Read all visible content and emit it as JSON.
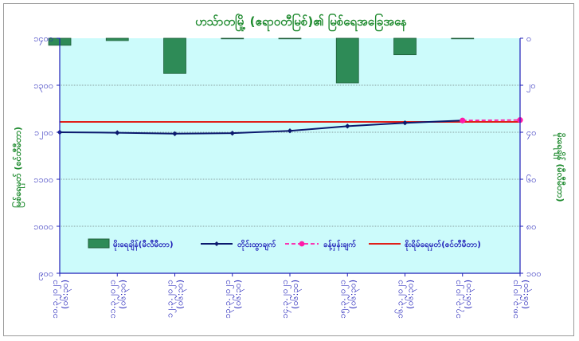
{
  "chart_data": {
    "type": "bar+line",
    "title": "ဟသ်ာတမြို့ (ဧရာဝတီမြစ်)၏ မြစ်ရေအခြေအနေ",
    "ylabel_left": "မြစ်ရေမှတ် (စင်တီမီတာ)",
    "ylabel_right": "မိုးရေချိန် (မီလီမီတာ)",
    "y_left": {
      "min": 900,
      "max": 1400,
      "step": 100,
      "tick_labels": [
        "၉၀၀",
        "၁၀၀၀",
        "၁၁၀၀",
        "၁၂၀၀",
        "၁၃၀၀",
        "၁၄၀၀"
      ]
    },
    "y_right": {
      "min": 0,
      "max": 100,
      "step": 20,
      "inverted": true,
      "tick_labels": [
        "၀",
        "၂၀",
        "၄၀",
        "၆၀",
        "၈၀",
        "၁၀၀"
      ]
    },
    "categories": [
      [
        "၁၀.၃.၂၀၂၁",
        "(၀၆:၃၀)"
      ],
      [
        "၁၁.၃.၂၀၂၁",
        "(၀၆:၃၀)"
      ],
      [
        "၁၂.၃.၂၀၂၁",
        "(၀၆:၃၀)"
      ],
      [
        "၁၃.၃.၂၀၂၁",
        "(၀၆:၃၀)"
      ],
      [
        "၁၄.၃.၂၀၂၁",
        "(၀၆:၃၀)"
      ],
      [
        "၁၅.၃.၂၀၂၁",
        "(၀၆:၃၀)"
      ],
      [
        "၁၆.၃.၂၀၂၁",
        "(၀၆:၃၀)"
      ],
      [
        "၁၇.၃.၂၀၂၁",
        "(၀၆:၃၀)"
      ],
      [
        "၁၈.၃.၂၀၂၁",
        "(၀၆:၃၀)"
      ]
    ],
    "series": [
      {
        "name": "မိုးရေချိန်(မီလီမီတာ)",
        "type": "bar",
        "axis": "right",
        "color": "#2e8b57",
        "values": [
          3,
          1,
          15,
          0,
          0,
          19,
          7,
          0,
          null
        ]
      },
      {
        "name": "တိုင်းထွာချက်",
        "type": "line",
        "axis": "left",
        "color": "#0b1a6e",
        "values": [
          1200,
          1199,
          1197,
          1198,
          1203,
          1213,
          1220,
          1225,
          null
        ]
      },
      {
        "name": "ခန့်မှန်းချက်",
        "type": "line-dashed",
        "axis": "left",
        "color": "#ff1aa8",
        "values": [
          null,
          null,
          null,
          null,
          null,
          null,
          null,
          1225,
          1226
        ]
      },
      {
        "name": "စိုးရိမ်ရေမှတ်(စင်တီမီတာ)",
        "type": "hline",
        "axis": "left",
        "color": "#e0201a",
        "value": 1222
      }
    ],
    "grid": true,
    "legend": "inside-bottom"
  }
}
